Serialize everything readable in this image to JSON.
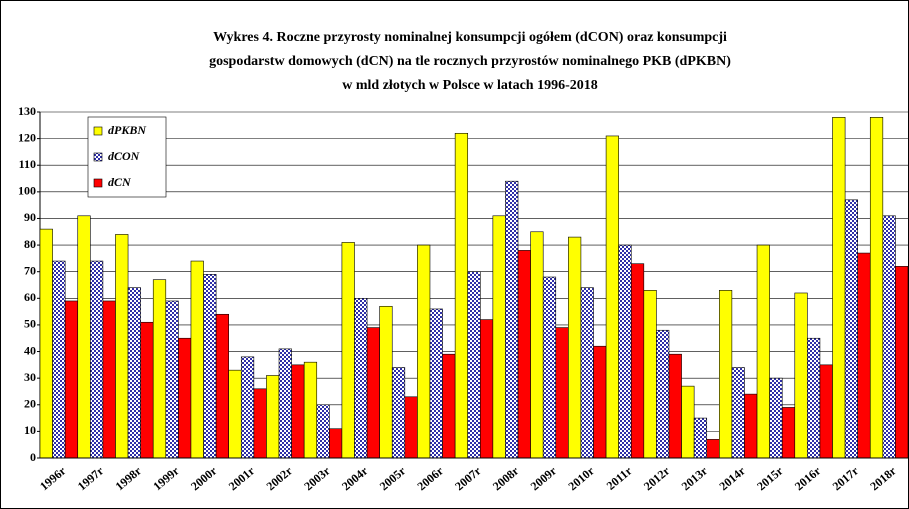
{
  "chart_data": {
    "type": "bar",
    "title": [
      "Wykres 4. Roczne przyrosty nominalnej konsumpcji ogółem (dCON) oraz konsumpcji",
      "gospodarstw domowych (dCN) na tle rocznych przyrostów nominalnego PKB  (dPKBN)",
      "w mld złotych w Polsce w latach 1996-2018"
    ],
    "categories": [
      "1996r",
      "1997r",
      "1998r",
      "1999r",
      "2000r",
      "2001r",
      "2002r",
      "2003r",
      "2004r",
      "2005r",
      "2006r",
      "2007r",
      "2008r",
      "2009r",
      "2010r",
      "2011r",
      "2012r",
      "2013r",
      "2014r",
      "2015r",
      "2016r",
      "2017r",
      "2018r"
    ],
    "series": [
      {
        "name": "dPKBN",
        "color": "#ffff00",
        "values": [
          86,
          91,
          84,
          67,
          74,
          33,
          31,
          36,
          81,
          57,
          80,
          122,
          91,
          85,
          83,
          121,
          63,
          27,
          63,
          80,
          62,
          128,
          128
        ]
      },
      {
        "name": "dCON",
        "color": "#2f2fa8",
        "pattern": "checker",
        "values": [
          74,
          74,
          64,
          59,
          69,
          38,
          41,
          20,
          60,
          34,
          56,
          70,
          104,
          68,
          64,
          80,
          48,
          15,
          34,
          30,
          45,
          97,
          91
        ]
      },
      {
        "name": "dCN",
        "color": "#ff0000",
        "values": [
          59,
          59,
          51,
          45,
          54,
          26,
          35,
          11,
          49,
          23,
          39,
          52,
          78,
          49,
          42,
          73,
          39,
          7,
          24,
          19,
          35,
          77,
          72
        ]
      }
    ],
    "ylim": [
      0,
      130
    ],
    "yticks": [
      0,
      10,
      20,
      30,
      40,
      50,
      60,
      70,
      80,
      90,
      100,
      110,
      120,
      130
    ],
    "grid": true,
    "legend": "top-left"
  }
}
